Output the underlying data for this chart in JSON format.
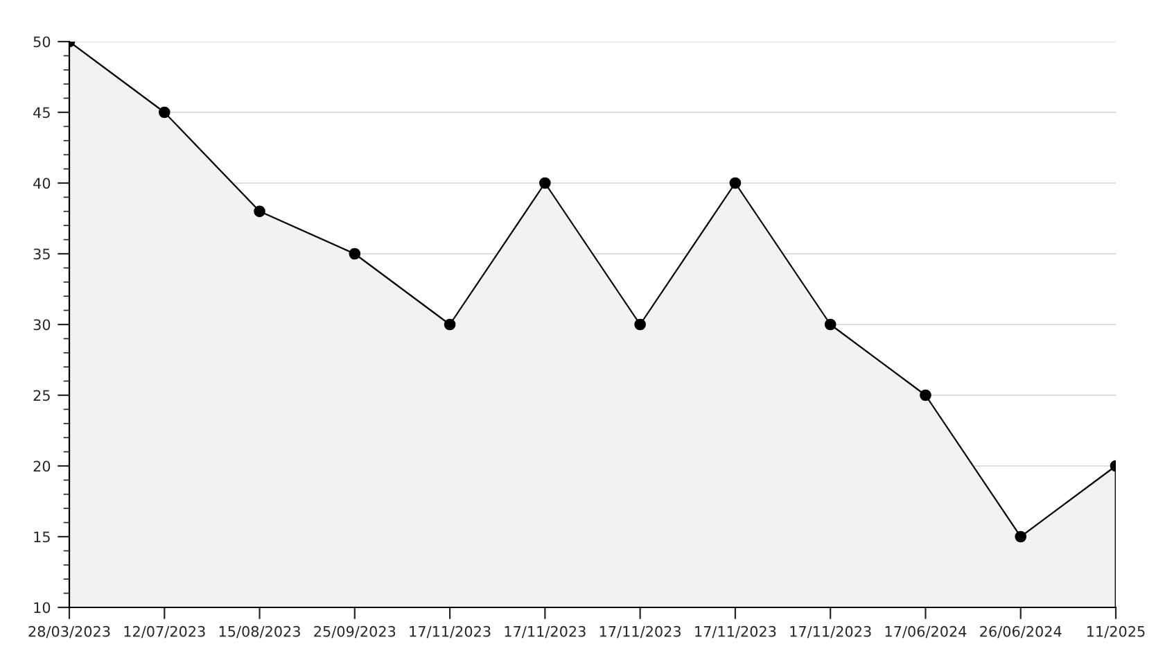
{
  "chart_data": {
    "type": "area",
    "categories": [
      "28/03/2023",
      "12/07/2023",
      "15/08/2023",
      "25/09/2023",
      "17/11/2023",
      "17/11/2023",
      "17/11/2023",
      "17/11/2023",
      "17/11/2023",
      "17/06/2024",
      "26/06/2024",
      "11/2025"
    ],
    "series": [
      {
        "color": "#000000",
        "values": [
          50,
          45,
          38,
          35,
          30,
          40,
          30,
          40,
          30,
          25,
          15,
          20
        ]
      }
    ],
    "ylim": [
      10,
      50
    ],
    "yticks": [
      10,
      15,
      20,
      25,
      30,
      35,
      40,
      45,
      50
    ],
    "grid": "y",
    "marker": "circle",
    "line_style": "solid",
    "legend": false
  }
}
